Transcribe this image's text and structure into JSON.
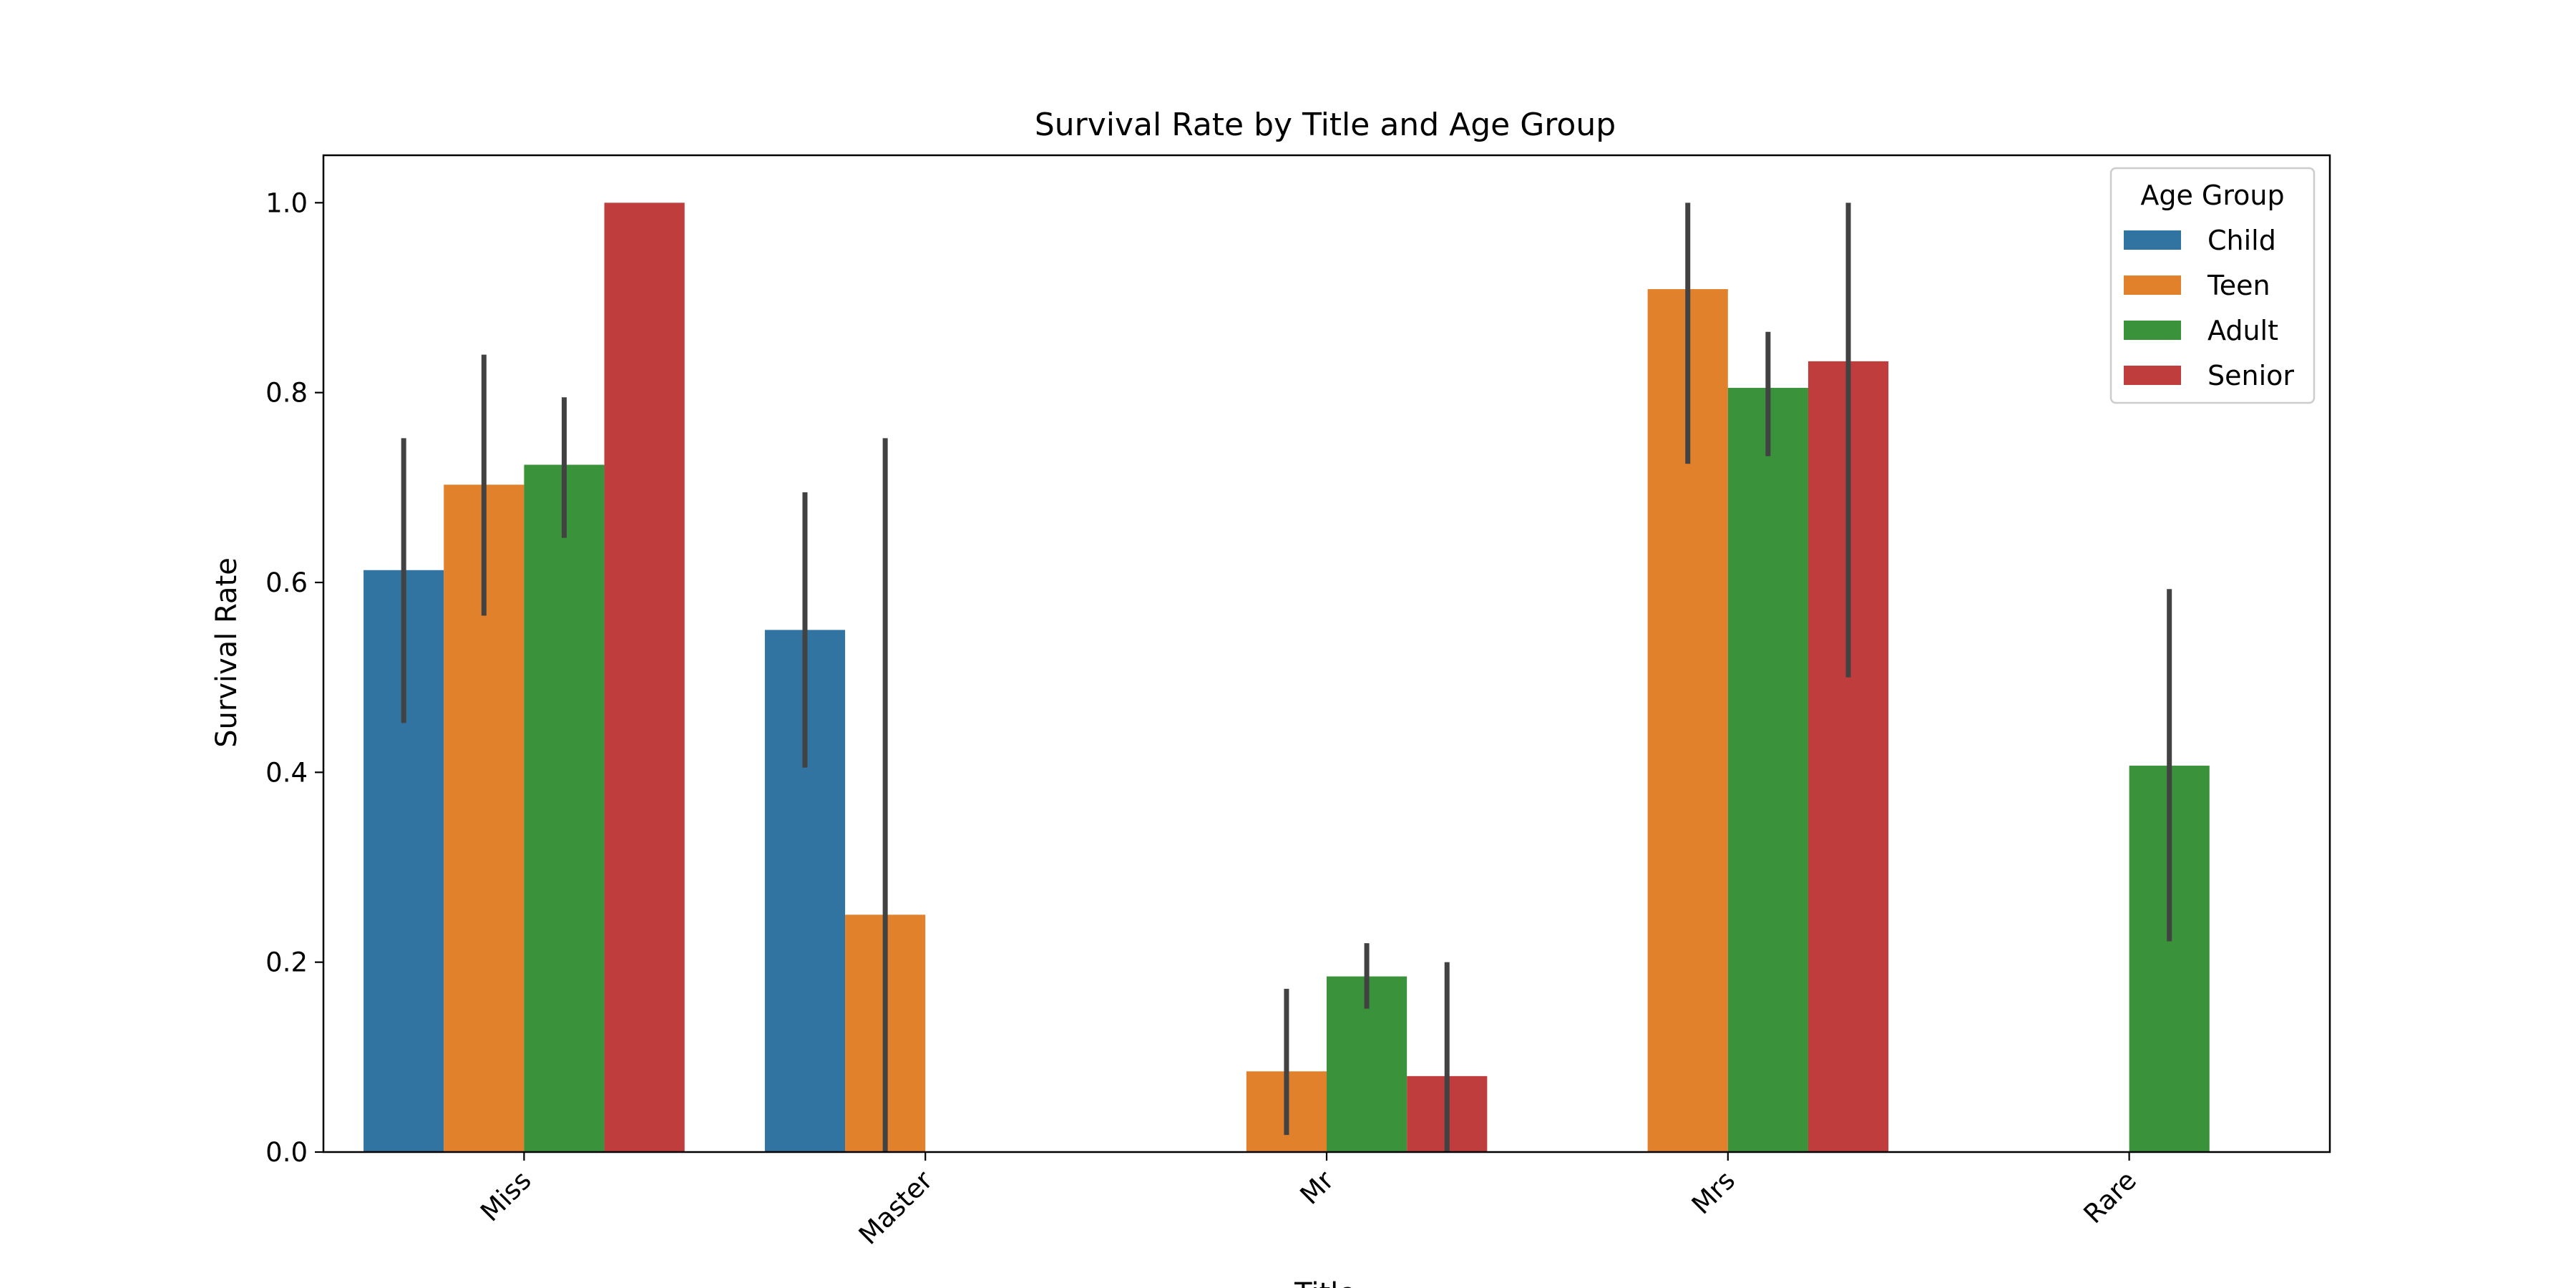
{
  "chart_data": {
    "type": "bar",
    "title": "Survival Rate by Title and Age Group",
    "xlabel": "Title",
    "ylabel": "Survival Rate",
    "ylim": [
      0,
      1.05
    ],
    "yticks": [
      0.0,
      0.2,
      0.4,
      0.6,
      0.8,
      1.0
    ],
    "ytick_labels": [
      "0.0",
      "0.2",
      "0.4",
      "0.6",
      "0.8",
      "1.0"
    ],
    "categories": [
      "Miss",
      "Master",
      "Mr",
      "Mrs",
      "Rare"
    ],
    "legend": {
      "title": "Age Group",
      "placement": "top-right"
    },
    "grid": false,
    "series": [
      {
        "name": "Child",
        "color": "#3274a1",
        "values": [
          0.613,
          0.55,
          null,
          null,
          null
        ],
        "ci": [
          [
            0.452,
            0.752
          ],
          [
            0.405,
            0.695
          ],
          null,
          null,
          null
        ]
      },
      {
        "name": "Teen",
        "color": "#e1812c",
        "values": [
          0.703,
          0.25,
          0.085,
          0.909,
          null
        ],
        "ci": [
          [
            0.565,
            0.84
          ],
          [
            0.0,
            0.752
          ],
          [
            0.018,
            0.172
          ],
          [
            0.725,
            1.0
          ],
          null
        ]
      },
      {
        "name": "Adult",
        "color": "#3a923a",
        "values": [
          0.724,
          null,
          0.185,
          0.805,
          0.407
        ],
        "ci": [
          [
            0.647,
            0.795
          ],
          null,
          [
            0.151,
            0.22
          ],
          [
            0.733,
            0.864
          ],
          [
            0.222,
            0.593
          ]
        ]
      },
      {
        "name": "Senior",
        "color": "#c03d3e",
        "values": [
          1.0,
          null,
          0.08,
          0.833,
          null
        ],
        "ci": [
          [
            1.0,
            1.0
          ],
          null,
          [
            0.0,
            0.2
          ],
          [
            0.5,
            1.0
          ],
          null
        ]
      }
    ]
  }
}
